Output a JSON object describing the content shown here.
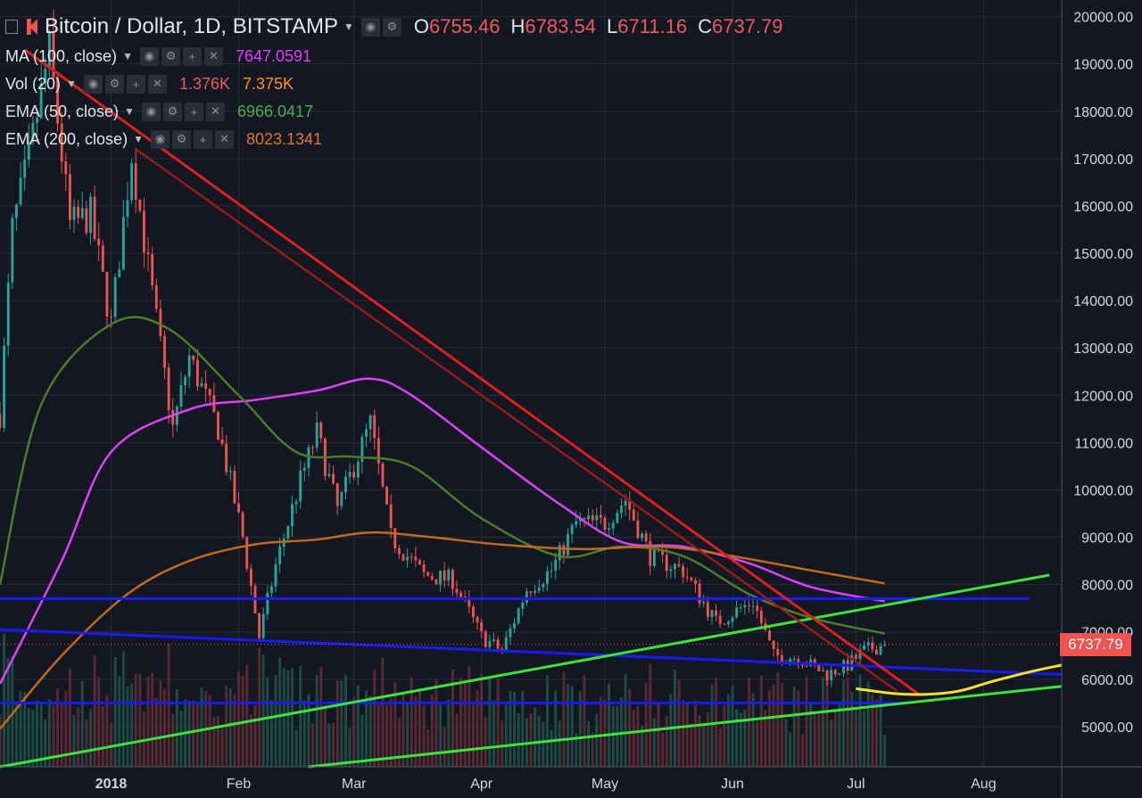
{
  "header": {
    "title": "Bitcoin / Dollar, 1D, BITSTAMP",
    "ohlc": [
      {
        "label": "O",
        "value": "6755.46"
      },
      {
        "label": "H",
        "value": "6783.54"
      },
      {
        "label": "L",
        "value": "6711.16"
      },
      {
        "label": "C",
        "value": "6737.79"
      }
    ]
  },
  "indicators": [
    {
      "name": "MA (100, close)",
      "values": [
        "7647.0591"
      ],
      "colors": [
        "#e040fb"
      ]
    },
    {
      "name": "Vol (20)",
      "values": [
        "1.376K",
        "7.375K"
      ],
      "colors": [
        "#f15a5a",
        "#ff9800"
      ]
    },
    {
      "name": "EMA (50, close)",
      "values": [
        "6966.0417"
      ],
      "colors": [
        "#4caf50"
      ]
    },
    {
      "name": "EMA (200, close)",
      "values": [
        "8023.1341"
      ],
      "colors": [
        "#e0792b"
      ]
    }
  ],
  "current_price_label": "6737.79",
  "colors": {
    "background": "#131722",
    "up": "#26a69a",
    "down": "#ef5350",
    "ma100": "#e040fb",
    "ema50": "#4b7f2a",
    "ema200": "#c26a1e",
    "support": "#1a1aff",
    "trend_up": "#39e639",
    "trend_down": "#e02020",
    "projection": "#f5e12c"
  },
  "chart_data": {
    "type": "line",
    "title": "Bitcoin / Dollar, 1D, BITSTAMP",
    "y_axis": {
      "ticks": [
        "20000.00",
        "19000.00",
        "18000.00",
        "17000.00",
        "16000.00",
        "15000.00",
        "14000.00",
        "13000.00",
        "12000.00",
        "11000.00",
        "10000.00",
        "9000.00",
        "8000.00",
        "7000.00",
        "6000.00",
        "5000.00"
      ],
      "ylim": [
        4150,
        20350
      ],
      "side": "right"
    },
    "x_axis": {
      "ticks": [
        "2018",
        "Feb",
        "Mar",
        "Apr",
        "May",
        "Jun",
        "Jul",
        "Aug"
      ],
      "xlim": [
        "2017-12-05",
        "2018-08-20"
      ]
    },
    "price_anchors": {
      "x": [
        "2017-12-05",
        "2017-12-08",
        "2017-12-12",
        "2017-12-17",
        "2017-12-22",
        "2017-12-27",
        "2018-01-01",
        "2018-01-06",
        "2018-01-10",
        "2018-01-16",
        "2018-01-20",
        "2018-01-27",
        "2018-02-02",
        "2018-02-06",
        "2018-02-10",
        "2018-02-16",
        "2018-02-20",
        "2018-02-25",
        "2018-03-05",
        "2018-03-10",
        "2018-03-18",
        "2018-03-25",
        "2018-04-01",
        "2018-04-06",
        "2018-04-12",
        "2018-04-18",
        "2018-04-24",
        "2018-05-01",
        "2018-05-06",
        "2018-05-12",
        "2018-05-20",
        "2018-05-28",
        "2018-06-06",
        "2018-06-11",
        "2018-06-17",
        "2018-06-24",
        "2018-06-29",
        "2018-07-03",
        "2018-07-08"
      ],
      "y": [
        11600,
        15500,
        17000,
        19300,
        15600,
        15800,
        13500,
        17100,
        14700,
        11300,
        12800,
        11300,
        9000,
        6900,
        8400,
        10200,
        11200,
        9600,
        11400,
        9000,
        8200,
        8100,
        6900,
        6600,
        7900,
        8300,
        9300,
        9300,
        9800,
        8600,
        8300,
        7200,
        7650,
        6500,
        6450,
        6100,
        6300,
        6600,
        6737.79
      ]
    },
    "series": [
      {
        "name": "MA (100, close)",
        "x": [
          "2017-12-05",
          "2017-12-20",
          "2018-01-01",
          "2018-01-20",
          "2018-02-05",
          "2018-02-20",
          "2018-03-05",
          "2018-03-15",
          "2018-04-01",
          "2018-04-20",
          "2018-05-05",
          "2018-05-20",
          "2018-06-05",
          "2018-06-20",
          "2018-07-08"
        ],
        "y": [
          5900,
          8500,
          10800,
          11700,
          11900,
          12100,
          12350,
          12000,
          10900,
          9700,
          8900,
          8800,
          8450,
          7950,
          7647
        ]
      },
      {
        "name": "EMA (50, close)",
        "x": [
          "2017-12-05",
          "2017-12-15",
          "2018-01-01",
          "2018-01-15",
          "2018-02-01",
          "2018-02-15",
          "2018-03-01",
          "2018-03-15",
          "2018-04-01",
          "2018-04-20",
          "2018-05-05",
          "2018-05-20",
          "2018-06-05",
          "2018-06-20",
          "2018-07-08"
        ],
        "y": [
          8000,
          11800,
          13500,
          13400,
          12000,
          10800,
          10700,
          10500,
          9400,
          8600,
          8800,
          8600,
          7800,
          7300,
          6966
        ]
      },
      {
        "name": "EMA (200, close)",
        "x": [
          "2017-12-05",
          "2017-12-20",
          "2018-01-05",
          "2018-01-20",
          "2018-02-05",
          "2018-02-20",
          "2018-03-05",
          "2018-03-20",
          "2018-04-05",
          "2018-04-25",
          "2018-05-15",
          "2018-06-01",
          "2018-06-20",
          "2018-07-08"
        ],
        "y": [
          4950,
          6500,
          7800,
          8500,
          8850,
          8950,
          9100,
          9000,
          8850,
          8750,
          8800,
          8600,
          8300,
          8023
        ]
      }
    ],
    "annotations": {
      "downtrend_lines": [
        {
          "x": [
            "2017-12-11",
            "2018-07-16"
          ],
          "y": [
            19300,
            5700
          ]
        },
        {
          "x": [
            "2018-01-07",
            "2018-07-11"
          ],
          "y": [
            17200,
            5750
          ]
        }
      ],
      "uptrend_lines": [
        {
          "x": [
            "2017-12-05",
            "2018-08-17"
          ],
          "y": [
            4150,
            8200
          ]
        },
        {
          "x": [
            "2018-02-18",
            "2018-08-20"
          ],
          "y": [
            4150,
            5850
          ]
        }
      ],
      "support_lines": [
        {
          "x": [
            "2017-12-05",
            "2018-08-12"
          ],
          "y": [
            7700,
            7700
          ]
        },
        {
          "x": [
            "2017-12-05",
            "2018-08-20"
          ],
          "y": [
            7050,
            6100
          ]
        },
        {
          "x": [
            "2017-12-05",
            "2018-07-14"
          ],
          "y": [
            5500,
            5500
          ]
        }
      ],
      "projection_curve": {
        "x": [
          "2018-07-01",
          "2018-07-10",
          "2018-07-18",
          "2018-07-26",
          "2018-08-03",
          "2018-08-12",
          "2018-08-20"
        ],
        "y": [
          5800,
          5700,
          5680,
          5750,
          5950,
          6150,
          6300
        ]
      }
    },
    "volume": {
      "ylim": [
        0,
        120000
      ]
    },
    "grid": true,
    "legend": "top-left"
  }
}
